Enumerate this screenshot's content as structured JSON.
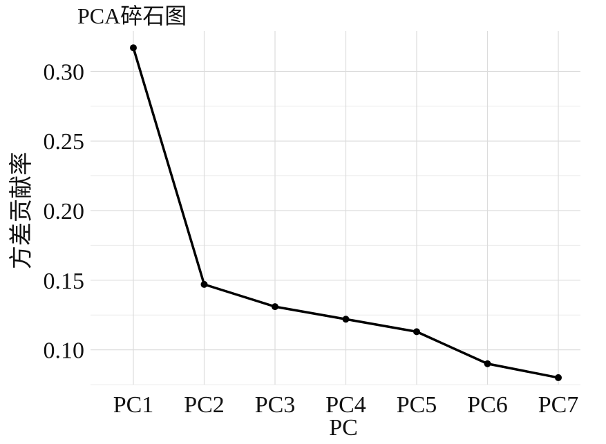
{
  "chart_data": {
    "type": "line",
    "title": "PCA碎石图",
    "x_label": "PC",
    "y_label": "方差贡献率",
    "categories": [
      "PC1",
      "PC2",
      "PC3",
      "PC4",
      "PC5",
      "PC6",
      "PC7"
    ],
    "series": [
      {
        "name": "方差贡献率",
        "color": "#000000",
        "values": [
          0.317,
          0.147,
          0.131,
          0.122,
          0.113,
          0.09,
          0.08
        ]
      }
    ],
    "ylim": [
      0.075,
      0.329
    ],
    "yticks": [
      {
        "value": 0.1,
        "label": "0.10"
      },
      0.15,
      {
        "value": 0.2,
        "label": "0.20"
      },
      0.25,
      {
        "value": 0.3,
        "label": "0.30"
      }
    ],
    "y_minor_ticks": [
      0.075,
      0.125,
      0.175,
      0.225,
      0.275
    ],
    "grid": true
  }
}
